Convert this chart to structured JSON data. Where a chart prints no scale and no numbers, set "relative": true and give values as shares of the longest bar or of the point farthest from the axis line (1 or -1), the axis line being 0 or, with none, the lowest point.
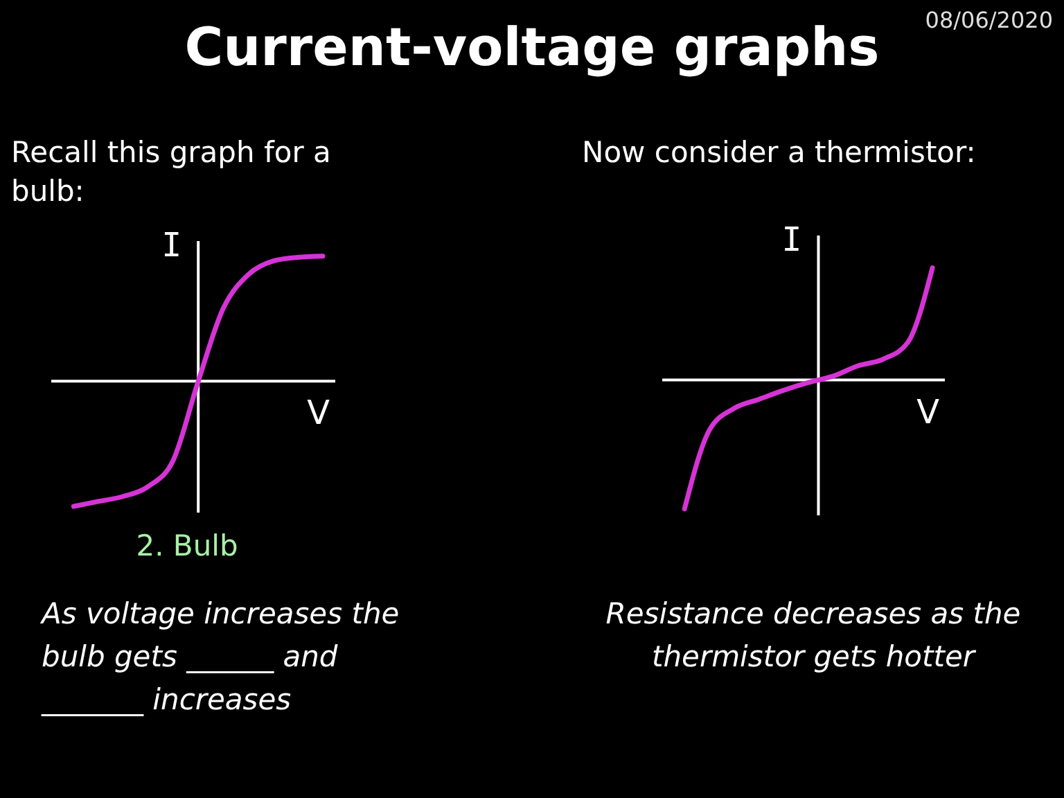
{
  "chart_data": [
    {
      "type": "line",
      "relative": true,
      "title": "Current-voltage graphs",
      "subtitle": "Recall this graph for a bulb:",
      "xlabel": "V",
      "ylabel": "I",
      "annotations": [
        "08/06/2020",
        "2. Bulb",
        "As voltage increases the bulb gets ______ and _______ increases"
      ],
      "categories": [
        null,
        null,
        null,
        null,
        null,
        null,
        null,
        null,
        null,
        null,
        null
      ],
      "series": [
        {
          "color": "#d633d6",
          "values": [
            -1,
            -0.96,
            -0.92,
            -0.84,
            -0.63,
            0,
            0.58,
            0.85,
            0.96,
            0.99,
            1
          ]
        }
      ]
    },
    {
      "type": "line",
      "relative": true,
      "subtitle": "Now consider a thermistor:",
      "xlabel": "V",
      "ylabel": "I",
      "annotations": [
        "Resistance decreases as the thermistor gets hotter"
      ],
      "categories": [
        null,
        null,
        null,
        null,
        null,
        null,
        null,
        null,
        null,
        null,
        null
      ],
      "series": [
        {
          "color": "#d633d6",
          "values": [
            -1,
            -0.39,
            -0.22,
            -0.15,
            -0.08,
            -0.02,
            0.03,
            0.11,
            0.16,
            0.29,
            0.87
          ]
        }
      ]
    }
  ]
}
